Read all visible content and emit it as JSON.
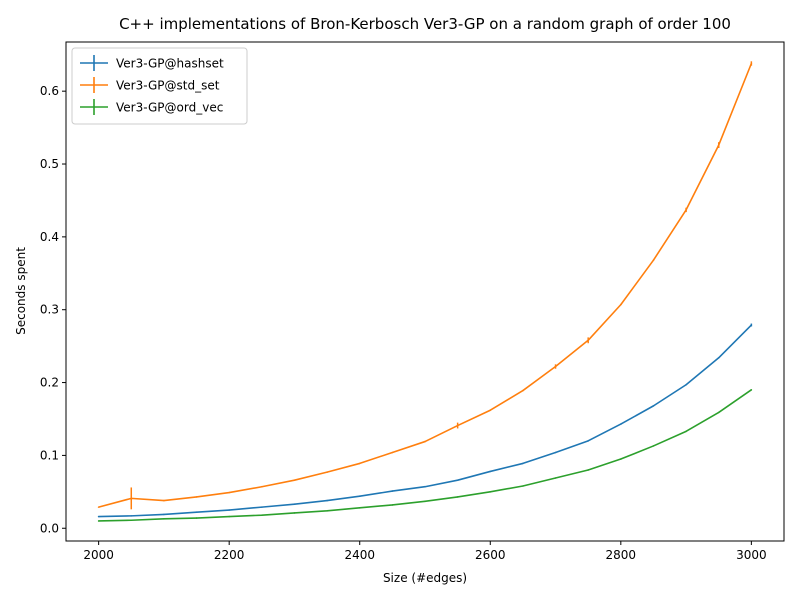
{
  "chart_data": {
    "type": "line",
    "title": "C++ implementations of Bron-Kerbosch Ver3-GP on a random graph of order 100",
    "xlabel": "Size (#edges)",
    "ylabel": "Seconds spent",
    "xlim": [
      1950,
      3050
    ],
    "ylim": [
      -0.0175,
      0.6675
    ],
    "xticks": [
      2000,
      2200,
      2400,
      2600,
      2800,
      3000
    ],
    "yticks": [
      0.0,
      0.1,
      0.2,
      0.3,
      0.4,
      0.5,
      0.6
    ],
    "ytick_labels": [
      "0.0",
      "0.1",
      "0.2",
      "0.3",
      "0.4",
      "0.5",
      "0.6"
    ],
    "grid": false,
    "legend_position": "upper-left",
    "x": [
      2000,
      2050,
      2100,
      2150,
      2200,
      2250,
      2300,
      2350,
      2400,
      2450,
      2500,
      2550,
      2600,
      2650,
      2700,
      2750,
      2800,
      2850,
      2900,
      2950,
      3000
    ],
    "series": [
      {
        "name": "Ver3-GP@hashset",
        "color": "#1f77b4",
        "values": [
          0.016,
          0.017,
          0.019,
          0.022,
          0.025,
          0.029,
          0.033,
          0.038,
          0.044,
          0.051,
          0.057,
          0.066,
          0.078,
          0.089,
          0.104,
          0.12,
          0.143,
          0.168,
          0.197,
          0.234,
          0.279
        ],
        "errors": [
          0,
          0,
          0,
          0,
          0,
          0,
          0,
          0,
          0,
          0,
          0,
          0,
          0,
          0,
          0,
          0,
          0,
          0,
          0,
          0,
          0.002
        ]
      },
      {
        "name": "Ver3-GP@std_set",
        "color": "#ff7f0e",
        "values": [
          0.029,
          0.041,
          0.038,
          0.043,
          0.049,
          0.057,
          0.066,
          0.077,
          0.089,
          0.104,
          0.119,
          0.141,
          0.162,
          0.189,
          0.222,
          0.258,
          0.307,
          0.368,
          0.437,
          0.526,
          0.638
        ],
        "errors": [
          0,
          0.015,
          0,
          0,
          0,
          0,
          0,
          0,
          0,
          0,
          0,
          0.004,
          0,
          0,
          0.003,
          0.004,
          0,
          0,
          0.003,
          0.004,
          0.003
        ]
      },
      {
        "name": "Ver3-GP@ord_vec",
        "color": "#2ca02c",
        "values": [
          0.01,
          0.011,
          0.013,
          0.014,
          0.016,
          0.018,
          0.021,
          0.024,
          0.028,
          0.032,
          0.037,
          0.043,
          0.05,
          0.058,
          0.069,
          0.08,
          0.095,
          0.113,
          0.133,
          0.159,
          0.19
        ],
        "errors": [
          0,
          0,
          0,
          0,
          0,
          0,
          0,
          0,
          0,
          0,
          0,
          0,
          0,
          0,
          0,
          0,
          0,
          0,
          0,
          0,
          0
        ]
      }
    ]
  }
}
